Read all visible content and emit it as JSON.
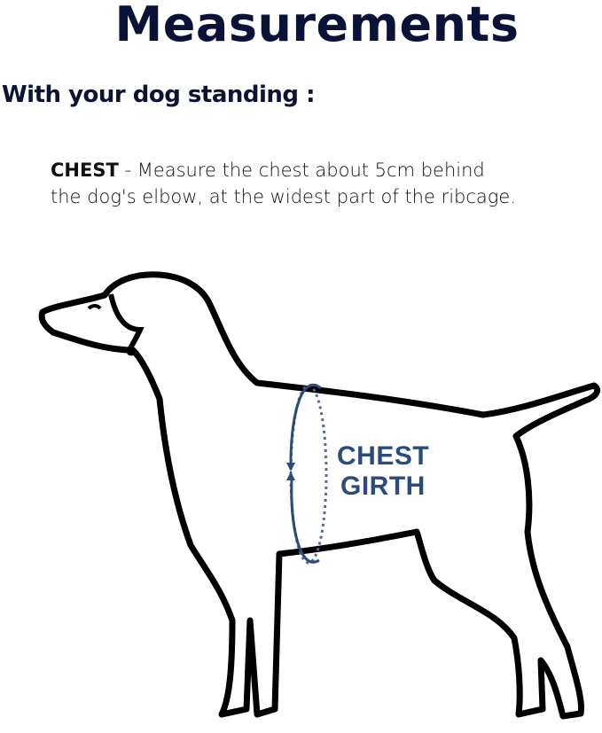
{
  "title": "Measurements",
  "subtitle": "With your dog standing :",
  "instruction": {
    "label": "CHEST",
    "line1": " - Measure the chest about 5cm behind",
    "line2": "the dog's elbow, at the widest part of the ribcage."
  },
  "diagram": {
    "label_line1": "CHEST",
    "label_line2": "GIRTH",
    "accent_color": "#2c4a7a",
    "outline_color": "#000000"
  }
}
